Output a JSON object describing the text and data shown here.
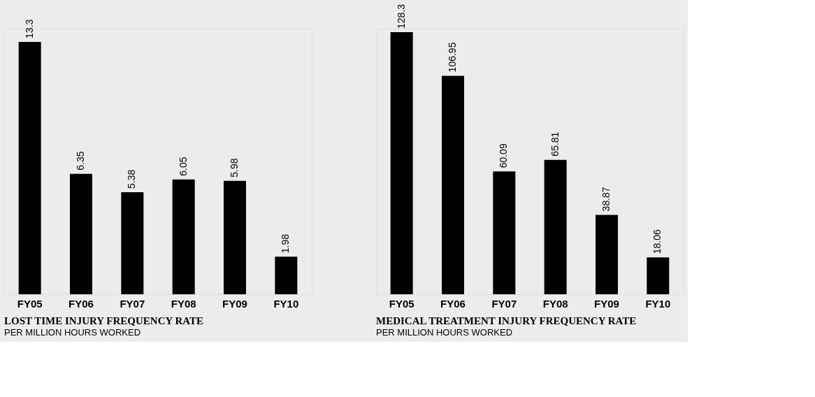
{
  "chart_data": [
    {
      "type": "bar",
      "title": "LOST TIME INJURY FREQUENCY RATE",
      "subtitle": "PER MILLION HOURS WORKED",
      "categories": [
        "FY05",
        "FY06",
        "FY07",
        "FY08",
        "FY09",
        "FY10"
      ],
      "values": [
        13.3,
        6.35,
        5.38,
        6.05,
        5.98,
        1.98
      ],
      "color": "#000000",
      "data_labels": true
    },
    {
      "type": "bar",
      "title": "MEDICAL TREATMENT INJURY FREQUENCY RATE",
      "subtitle": "PER MILLION HOURS WORKED",
      "categories": [
        "FY05",
        "FY06",
        "FY07",
        "FY08",
        "FY09",
        "FY10"
      ],
      "values": [
        128.3,
        106.95,
        60.09,
        65.81,
        38.87,
        18.06
      ],
      "color": "#000000",
      "data_labels": true
    }
  ]
}
